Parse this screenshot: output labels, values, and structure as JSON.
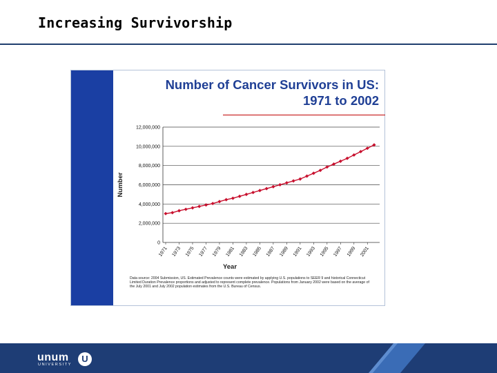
{
  "slide": {
    "title": "Increasing Survivorship"
  },
  "chart_data": {
    "type": "line",
    "title": "Number of Cancer Survivors in US:",
    "subtitle": "1971 to 2002",
    "xlabel": "Year",
    "ylabel": "Number",
    "x": [
      1971,
      1972,
      1973,
      1974,
      1975,
      1976,
      1977,
      1978,
      1979,
      1980,
      1981,
      1982,
      1983,
      1984,
      1985,
      1986,
      1987,
      1988,
      1989,
      1990,
      1991,
      1992,
      1993,
      1994,
      1995,
      1996,
      1997,
      1998,
      1999,
      2000,
      2001,
      2002
    ],
    "values": [
      3000000,
      3100000,
      3300000,
      3450000,
      3600000,
      3750000,
      3900000,
      4050000,
      4250000,
      4450000,
      4600000,
      4800000,
      5000000,
      5200000,
      5400000,
      5600000,
      5800000,
      6000000,
      6200000,
      6400000,
      6600000,
      6900000,
      7200000,
      7500000,
      7850000,
      8150000,
      8450000,
      8750000,
      9100000,
      9450000,
      9800000,
      10150000
    ],
    "xticks": [
      "1971",
      "1973",
      "1975",
      "1977",
      "1979",
      "1981",
      "1983",
      "1985",
      "1987",
      "1989",
      "1991",
      "1993",
      "1995",
      "1997",
      "1999",
      "2001"
    ],
    "yticks": [
      "0",
      "2,000,000",
      "4,000,000",
      "6,000,000",
      "8,000,000",
      "10,000,000",
      "12,000,000"
    ],
    "ylim": [
      0,
      12000000
    ],
    "grid": true,
    "series_color": "#c8102e",
    "source_note": "Data source: 2004 Submission, US. Estimated Prevalence counts were estimated by applying U.S. populations to SEER 9 and historical Connecticut Limited Duration Prevalence proportions and adjusted to represent complete prevalence. Populations from January 2002 were based on the average of the July 2001 and July 2002 population estimates from the U.S. Bureau of Census."
  },
  "footer": {
    "logo_word": "unum",
    "logo_sub": "UNIVERSITY",
    "logo_mark": "U",
    "bar_color": "#1e3d75"
  }
}
